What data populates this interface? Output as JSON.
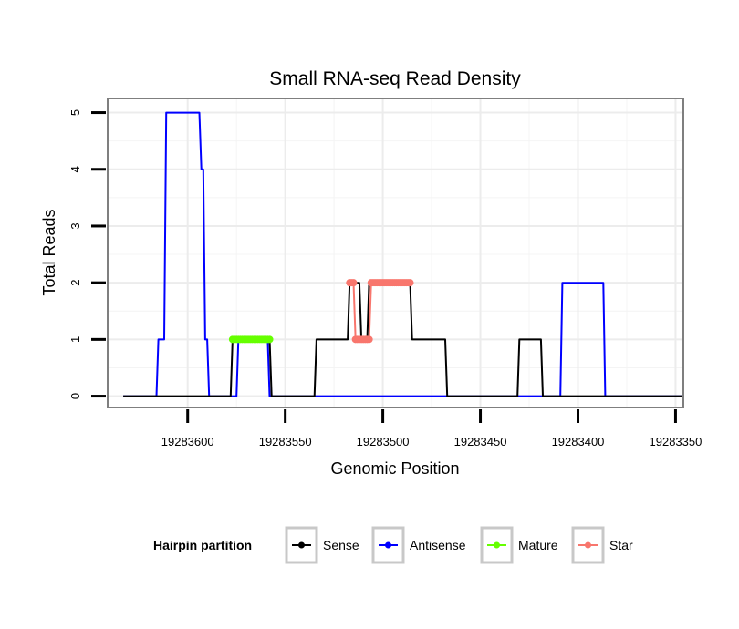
{
  "chart_data": {
    "type": "line",
    "title": "Small RNA-seq Read Density",
    "xlabel": "Genomic Position",
    "ylabel": "Total Reads",
    "x_reversed": true,
    "xlim": [
      19283641,
      19283346
    ],
    "ylim": [
      -0.2,
      5.25
    ],
    "x_ticks": [
      {
        "value": 19283600,
        "label": "19283600"
      },
      {
        "value": 19283550,
        "label": "19283550"
      },
      {
        "value": 19283500,
        "label": "19283500"
      },
      {
        "value": 19283450,
        "label": "19283450"
      },
      {
        "value": 19283400,
        "label": "19283400"
      },
      {
        "value": 19283350,
        "label": "19283350"
      }
    ],
    "y_ticks": [
      {
        "value": 0,
        "label": "0"
      },
      {
        "value": 1,
        "label": "1"
      },
      {
        "value": 2,
        "label": "2"
      },
      {
        "value": 3,
        "label": "3"
      },
      {
        "value": 4,
        "label": "4"
      },
      {
        "value": 5,
        "label": "5"
      }
    ],
    "grid": true,
    "legend": {
      "title": "Hairpin partition",
      "placement": "bottom",
      "entries": [
        {
          "name": "Sense",
          "color": "#000000"
        },
        {
          "name": "Antisense",
          "color": "#0000ff"
        },
        {
          "name": "Mature",
          "color": "#66ff00"
        },
        {
          "name": "Star",
          "color": "#f8766d"
        }
      ]
    },
    "series": [
      {
        "name": "Antisense",
        "color": "#0000ff",
        "marker": false,
        "x": [
          19283633,
          19283616,
          19283615,
          19283612,
          19283611,
          19283594,
          19283593,
          19283592,
          19283591,
          19283590,
          19283589,
          19283575,
          19283574,
          19283559,
          19283558,
          19283456,
          19283455,
          19283409,
          19283408,
          19283387,
          19283386,
          19283346
        ],
        "y": [
          0,
          0,
          1,
          1,
          5,
          5,
          4,
          4,
          1,
          1,
          0,
          0,
          1,
          1,
          0,
          0,
          0,
          0,
          2,
          2,
          0,
          0
        ]
      },
      {
        "name": "Sense",
        "color": "#000000",
        "marker": false,
        "x": [
          19283633,
          19283578,
          19283577,
          19283558,
          19283557,
          19283535,
          19283534,
          19283518,
          19283517,
          19283512,
          19283511,
          19283508,
          19283507,
          19283505,
          19283504,
          19283495,
          19283494,
          19283486,
          19283485,
          19283468,
          19283467,
          19283431,
          19283430,
          19283419,
          19283418,
          19283400,
          19283399,
          19283346
        ],
        "y": [
          0,
          0,
          1,
          1,
          0,
          0,
          1,
          1,
          2,
          2,
          1,
          1,
          2,
          2,
          2,
          2,
          2,
          2,
          1,
          1,
          0,
          0,
          1,
          1,
          0,
          0,
          0,
          0
        ]
      },
      {
        "name": "Mature",
        "color": "#66ff00",
        "marker": true,
        "x": [
          19283577,
          19283576,
          19283575,
          19283574,
          19283573,
          19283572,
          19283571,
          19283570,
          19283569,
          19283568,
          19283567,
          19283566,
          19283565,
          19283564,
          19283563,
          19283562,
          19283561,
          19283560,
          19283559,
          19283558
        ],
        "y": [
          1,
          1,
          1,
          1,
          1,
          1,
          1,
          1,
          1,
          1,
          1,
          1,
          1,
          1,
          1,
          1,
          1,
          1,
          1,
          1
        ]
      },
      {
        "name": "Star",
        "color": "#f8766d",
        "marker": true,
        "x": [
          19283517,
          19283516,
          19283515,
          19283514,
          19283513,
          19283512,
          19283511,
          19283510,
          19283509,
          19283508,
          19283507,
          19283506,
          19283505,
          19283504,
          19283503,
          19283502,
          19283501,
          19283500,
          19283499,
          19283498,
          19283497,
          19283496,
          19283495,
          19283494,
          19283493,
          19283492,
          19283491,
          19283490,
          19283489,
          19283488,
          19283487,
          19283486
        ],
        "y": [
          2,
          2,
          2,
          1,
          1,
          1,
          1,
          1,
          1,
          1,
          1,
          2,
          2,
          2,
          2,
          2,
          2,
          2,
          2,
          2,
          2,
          2,
          2,
          2,
          2,
          2,
          2,
          2,
          2,
          2,
          2,
          2
        ]
      }
    ]
  }
}
